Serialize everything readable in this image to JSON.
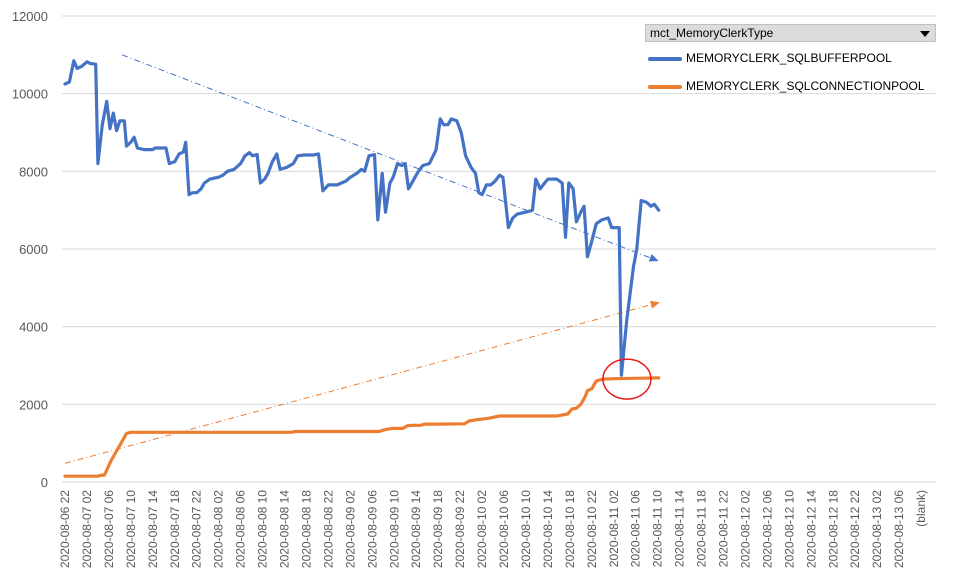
{
  "chart_data": {
    "type": "line",
    "legend": {
      "title": "mct_MemoryClerkType",
      "placement": "top-right"
    },
    "ylim": [
      0,
      12000
    ],
    "yticks": [
      0,
      2000,
      4000,
      6000,
      8000,
      10000,
      12000
    ],
    "grid": "horizontal",
    "xticks": [
      "2020-08-06 22",
      "2020-08-07 02",
      "2020-08-07 06",
      "2020-08-07 10",
      "2020-08-07 14",
      "2020-08-07 18",
      "2020-08-07 22",
      "2020-08-08 02",
      "2020-08-08 06",
      "2020-08-08 10",
      "2020-08-08 14",
      "2020-08-08 18",
      "2020-08-08 22",
      "2020-08-09 02",
      "2020-08-09 06",
      "2020-08-09 10",
      "2020-08-09 14",
      "2020-08-09 18",
      "2020-08-09 22",
      "2020-08-10 02",
      "2020-08-10 06",
      "2020-08-10 10",
      "2020-08-10 14",
      "2020-08-10 18",
      "2020-08-10 22",
      "2020-08-11 02",
      "2020-08-11 06",
      "2020-08-11 10",
      "2020-08-11 14",
      "2020-08-11 18",
      "2020-08-11 22",
      "2020-08-12 02",
      "2020-08-12 06",
      "2020-08-12 10",
      "2020-08-12 14",
      "2020-08-12 18",
      "2020-08-12 22",
      "2020-08-13 02",
      "2020-08-13 06",
      "(blank)"
    ],
    "series": [
      {
        "name": "MEMORYCLERK_SQLBUFFERPOOL",
        "color": "#4472C4",
        "points": [
          [
            0,
            10250
          ],
          [
            0.2,
            10300
          ],
          [
            0.4,
            10850
          ],
          [
            0.55,
            10650
          ],
          [
            0.75,
            10700
          ],
          [
            1,
            10820
          ],
          [
            1.15,
            10780
          ],
          [
            1.4,
            10760
          ],
          [
            1.5,
            8200
          ],
          [
            1.7,
            9200
          ],
          [
            1.9,
            9800
          ],
          [
            2.05,
            9100
          ],
          [
            2.2,
            9500
          ],
          [
            2.35,
            9050
          ],
          [
            2.5,
            9300
          ],
          [
            2.7,
            9300
          ],
          [
            2.8,
            8650
          ],
          [
            3,
            8750
          ],
          [
            3.15,
            8880
          ],
          [
            3.3,
            8600
          ],
          [
            3.6,
            8560
          ],
          [
            4,
            8560
          ],
          [
            4.1,
            8600
          ],
          [
            4.6,
            8600
          ],
          [
            4.75,
            8200
          ],
          [
            5,
            8250
          ],
          [
            5.2,
            8450
          ],
          [
            5.4,
            8500
          ],
          [
            5.5,
            8750
          ],
          [
            5.65,
            7400
          ],
          [
            5.8,
            7450
          ],
          [
            6,
            7450
          ],
          [
            6.2,
            7550
          ],
          [
            6.35,
            7700
          ],
          [
            6.6,
            7800
          ],
          [
            7,
            7850
          ],
          [
            7.2,
            7900
          ],
          [
            7.4,
            8000
          ],
          [
            7.7,
            8050
          ],
          [
            8,
            8200
          ],
          [
            8.2,
            8400
          ],
          [
            8.4,
            8480
          ],
          [
            8.55,
            8400
          ],
          [
            8.75,
            8430
          ],
          [
            8.9,
            7700
          ],
          [
            9.1,
            7800
          ],
          [
            9.25,
            7950
          ],
          [
            9.45,
            8250
          ],
          [
            9.65,
            8450
          ],
          [
            9.8,
            8050
          ],
          [
            10.1,
            8100
          ],
          [
            10.4,
            8200
          ],
          [
            10.6,
            8400
          ],
          [
            10.9,
            8420
          ],
          [
            11.3,
            8420
          ],
          [
            11.55,
            8450
          ],
          [
            11.75,
            7500
          ],
          [
            12,
            7650
          ],
          [
            12.4,
            7650
          ],
          [
            12.8,
            7750
          ],
          [
            13,
            7850
          ],
          [
            13.3,
            7950
          ],
          [
            13.5,
            8050
          ],
          [
            13.65,
            8000
          ],
          [
            13.85,
            8400
          ],
          [
            14.1,
            8430
          ],
          [
            14.25,
            6750
          ],
          [
            14.45,
            7950
          ],
          [
            14.6,
            6950
          ],
          [
            14.8,
            7700
          ],
          [
            14.95,
            7850
          ],
          [
            15.15,
            8200
          ],
          [
            15.35,
            8150
          ],
          [
            15.5,
            8200
          ],
          [
            15.65,
            7550
          ],
          [
            15.9,
            7800
          ],
          [
            16.1,
            8000
          ],
          [
            16.3,
            8150
          ],
          [
            16.6,
            8200
          ],
          [
            16.9,
            8550
          ],
          [
            17.1,
            9350
          ],
          [
            17.25,
            9200
          ],
          [
            17.45,
            9200
          ],
          [
            17.6,
            9350
          ],
          [
            17.85,
            9300
          ],
          [
            18.05,
            9000
          ],
          [
            18.25,
            8400
          ],
          [
            18.5,
            8100
          ],
          [
            18.7,
            7950
          ],
          [
            18.85,
            7450
          ],
          [
            19,
            7400
          ],
          [
            19.2,
            7650
          ],
          [
            19.4,
            7650
          ],
          [
            19.6,
            7750
          ],
          [
            19.8,
            7900
          ],
          [
            19.95,
            7850
          ],
          [
            20.2,
            6550
          ],
          [
            20.4,
            6800
          ],
          [
            20.6,
            6900
          ],
          [
            21.0,
            6950
          ],
          [
            21.3,
            7000
          ],
          [
            21.45,
            7800
          ],
          [
            21.65,
            7550
          ],
          [
            21.85,
            7700
          ],
          [
            22,
            7800
          ],
          [
            22.4,
            7800
          ],
          [
            22.65,
            7700
          ],
          [
            22.8,
            6300
          ],
          [
            22.95,
            7700
          ],
          [
            23.15,
            7550
          ],
          [
            23.3,
            6700
          ],
          [
            23.5,
            6950
          ],
          [
            23.65,
            7100
          ],
          [
            23.8,
            5800
          ],
          [
            24,
            6200
          ],
          [
            24.2,
            6650
          ],
          [
            24.45,
            6750
          ],
          [
            24.75,
            6800
          ],
          [
            24.9,
            6550
          ],
          [
            25.25,
            6550
          ],
          [
            25.35,
            2750
          ],
          [
            25.6,
            4200
          ],
          [
            25.9,
            5550
          ],
          [
            26.05,
            6000
          ],
          [
            26.25,
            7250
          ],
          [
            26.5,
            7200
          ],
          [
            26.7,
            7100
          ],
          [
            26.85,
            7150
          ],
          [
            27.05,
            7000
          ]
        ]
      },
      {
        "name": "MEMORYCLERK_SQLCONNECTIONPOOL",
        "color": "#ED7D31",
        "points": [
          [
            0,
            150
          ],
          [
            1.5,
            150
          ],
          [
            1.6,
            170
          ],
          [
            1.8,
            180
          ],
          [
            2.1,
            550
          ],
          [
            2.4,
            850
          ],
          [
            2.8,
            1250
          ],
          [
            3,
            1280
          ],
          [
            4,
            1280
          ],
          [
            6,
            1280
          ],
          [
            8,
            1280
          ],
          [
            10.3,
            1280
          ],
          [
            10.5,
            1300
          ],
          [
            12,
            1300
          ],
          [
            14.3,
            1300
          ],
          [
            14.6,
            1350
          ],
          [
            14.9,
            1380
          ],
          [
            15.4,
            1380
          ],
          [
            15.6,
            1450
          ],
          [
            15.8,
            1460
          ],
          [
            16.2,
            1460
          ],
          [
            16.4,
            1490
          ],
          [
            17,
            1490
          ],
          [
            18.2,
            1500
          ],
          [
            18.4,
            1570
          ],
          [
            18.7,
            1600
          ],
          [
            19.3,
            1640
          ],
          [
            19.6,
            1680
          ],
          [
            19.8,
            1700
          ],
          [
            21,
            1700
          ],
          [
            22.4,
            1700
          ],
          [
            22.6,
            1720
          ],
          [
            22.9,
            1750
          ],
          [
            23.1,
            1880
          ],
          [
            23.3,
            1900
          ],
          [
            23.5,
            2000
          ],
          [
            23.7,
            2200
          ],
          [
            23.8,
            2350
          ],
          [
            24.0,
            2400
          ],
          [
            24.2,
            2600
          ],
          [
            24.5,
            2650
          ],
          [
            25,
            2660
          ],
          [
            26,
            2670
          ],
          [
            27.05,
            2680
          ]
        ]
      }
    ],
    "trendlines": [
      {
        "series": "MEMORYCLERK_SQLBUFFERPOOL",
        "color": "#4472C4",
        "from": [
          2.6,
          11000
        ],
        "to": [
          27,
          5700
        ]
      },
      {
        "series": "MEMORYCLERK_SQLCONNECTIONPOOL",
        "color": "#ED7D31",
        "from": [
          0,
          480
        ],
        "to": [
          27.05,
          4620
        ]
      }
    ],
    "annotation": {
      "shape": "circle",
      "color": "#E81A1A",
      "center": [
        25.6,
        2650
      ]
    }
  }
}
